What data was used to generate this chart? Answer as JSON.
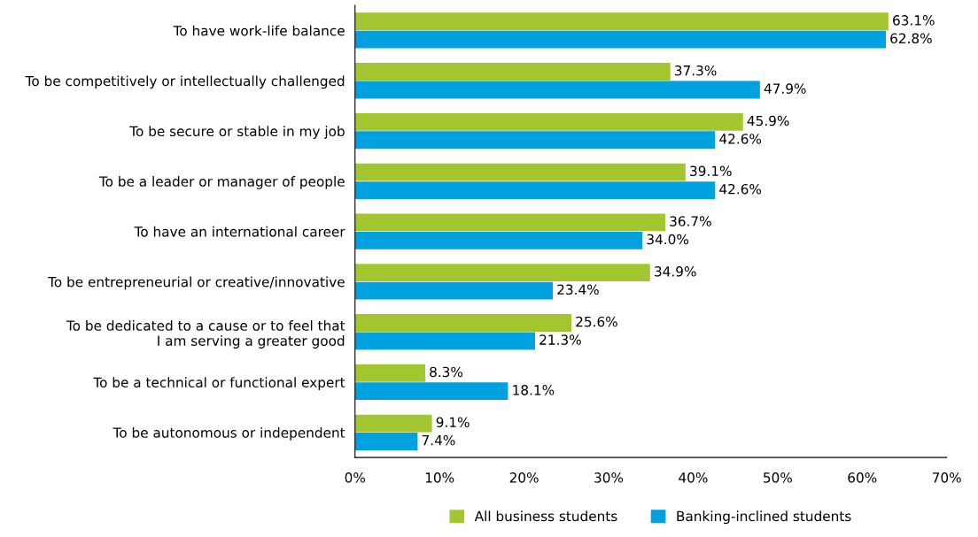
{
  "chart_data": {
    "type": "bar",
    "orientation": "horizontal",
    "categories": [
      "To have work-life balance",
      "To be competitively or intellectually challenged",
      "To be secure or stable in my job",
      "To be a leader or manager of people",
      "To have an international career",
      "To be entrepreneurial or creative/innovative",
      "To be dedicated to a cause or to feel that\nI am serving a greater good",
      "To be a technical or functional expert",
      "To be autonomous or independent"
    ],
    "series": [
      {
        "name": "All business students",
        "color": "#a3c52f",
        "values": [
          63.1,
          37.3,
          45.9,
          39.1,
          36.7,
          34.9,
          25.6,
          8.3,
          9.1
        ],
        "value_labels": [
          "63.1%",
          "37.3%",
          "45.9%",
          "39.1%",
          "36.7%",
          "34.9%",
          "25.6%",
          "8.3%",
          "9.1%"
        ]
      },
      {
        "name": "Banking-inclined students",
        "color": "#00a1de",
        "values": [
          62.8,
          47.9,
          42.6,
          42.6,
          34.0,
          23.4,
          21.3,
          18.1,
          7.4
        ],
        "value_labels": [
          "62.8%",
          "47.9%",
          "42.6%",
          "42.6%",
          "34.0%",
          "23.4%",
          "21.3%",
          "18.1%",
          "7.4%"
        ]
      }
    ],
    "xlim": [
      0,
      70
    ],
    "xticks": [
      {
        "value": 0,
        "label": "0%"
      },
      {
        "value": 10,
        "label": "10%"
      },
      {
        "value": 20,
        "label": "20%"
      },
      {
        "value": 30,
        "label": "30%"
      },
      {
        "value": 40,
        "label": "40%"
      },
      {
        "value": 50,
        "label": "50%"
      },
      {
        "value": 60,
        "label": "60%"
      },
      {
        "value": 70,
        "label": "70%"
      }
    ],
    "grid": false,
    "legend": "bottom"
  }
}
